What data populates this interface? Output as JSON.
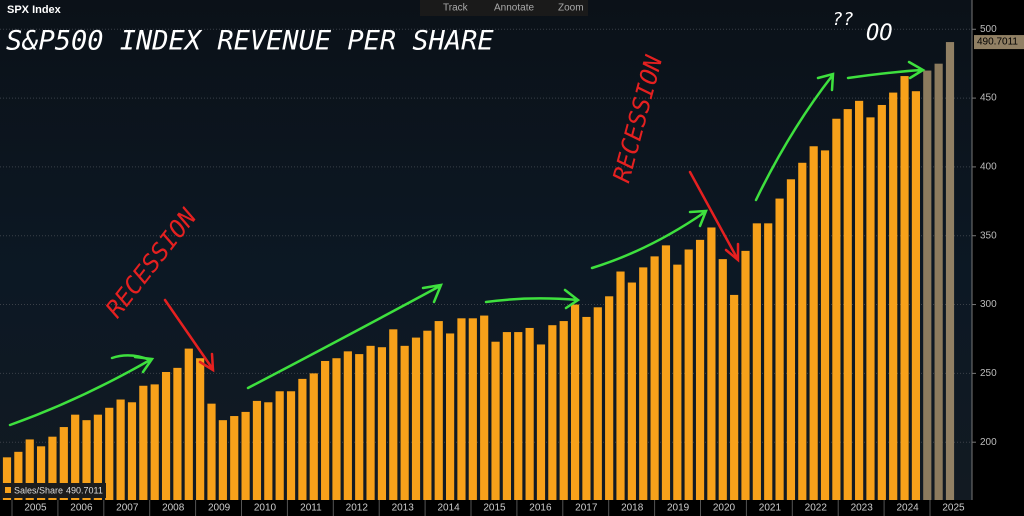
{
  "header": {
    "ticker": "SPX Index",
    "tools": [
      "Track",
      "Annotate",
      "Zoom"
    ]
  },
  "chart_data": {
    "type": "bar",
    "title": "S&P500 INDEX REVENUE PER SHARE",
    "annotations": [
      "RECESSION",
      "RECESSION",
      "??",
      "OO"
    ],
    "x_labels": [
      "2005",
      "2006",
      "2007",
      "2008",
      "2009",
      "2010",
      "2011",
      "2012",
      "2013",
      "2014",
      "2015",
      "2016",
      "2017",
      "2018",
      "2019",
      "2020",
      "2021",
      "2022",
      "2023",
      "2024",
      "2025"
    ],
    "series": [
      {
        "name": "Sales/Share",
        "values": [
          189,
          193,
          202,
          197,
          204,
          211,
          220,
          216,
          220,
          225,
          231,
          229,
          241,
          242,
          251,
          254,
          268,
          261,
          228,
          216,
          219,
          222,
          230,
          229,
          237,
          237,
          246,
          250,
          259,
          261,
          266,
          264,
          270,
          269,
          282,
          270,
          276,
          281,
          288,
          279,
          290,
          290,
          292,
          273,
          280,
          280,
          283,
          271,
          285,
          288,
          300,
          291,
          298,
          306,
          324,
          316,
          327,
          335,
          343,
          329,
          340,
          347,
          356,
          333,
          307,
          339,
          359,
          359,
          377,
          391,
          403,
          415,
          412,
          435,
          442,
          448,
          436,
          445,
          454,
          466,
          455,
          470,
          475,
          490.7011
        ],
        "colors": [
          "#f7a11a",
          "#f7a11a",
          "#f7a11a",
          "#f7a11a",
          "#f7a11a",
          "#f7a11a",
          "#f7a11a",
          "#f7a11a",
          "#f7a11a",
          "#f7a11a",
          "#f7a11a",
          "#f7a11a",
          "#f7a11a",
          "#f7a11a",
          "#f7a11a",
          "#f7a11a",
          "#f7a11a",
          "#f7a11a",
          "#f7a11a",
          "#f7a11a",
          "#f7a11a",
          "#f7a11a",
          "#f7a11a",
          "#f7a11a",
          "#f7a11a",
          "#f7a11a",
          "#f7a11a",
          "#f7a11a",
          "#f7a11a",
          "#f7a11a",
          "#f7a11a",
          "#f7a11a",
          "#f7a11a",
          "#f7a11a",
          "#f7a11a",
          "#f7a11a",
          "#f7a11a",
          "#f7a11a",
          "#f7a11a",
          "#f7a11a",
          "#f7a11a",
          "#f7a11a",
          "#f7a11a",
          "#f7a11a",
          "#f7a11a",
          "#f7a11a",
          "#f7a11a",
          "#f7a11a",
          "#f7a11a",
          "#f7a11a",
          "#f7a11a",
          "#f7a11a",
          "#f7a11a",
          "#f7a11a",
          "#f7a11a",
          "#f7a11a",
          "#f7a11a",
          "#f7a11a",
          "#f7a11a",
          "#f7a11a",
          "#f7a11a",
          "#f7a11a",
          "#f7a11a",
          "#f7a11a",
          "#f7a11a",
          "#f7a11a",
          "#f7a11a",
          "#f7a11a",
          "#f7a11a",
          "#f7a11a",
          "#f7a11a",
          "#f7a11a",
          "#f7a11a",
          "#f7a11a",
          "#f7a11a",
          "#f7a11a",
          "#f7a11a",
          "#f7a11a",
          "#f7a11a",
          "#f7a11a",
          "#f7a11a",
          "#8c7b5e",
          "#8c7b5e",
          "#918064"
        ]
      }
    ],
    "ylim": [
      158,
      514
    ],
    "yticks": [
      200,
      250,
      300,
      350,
      400,
      450,
      500
    ],
    "grid": true
  }
}
